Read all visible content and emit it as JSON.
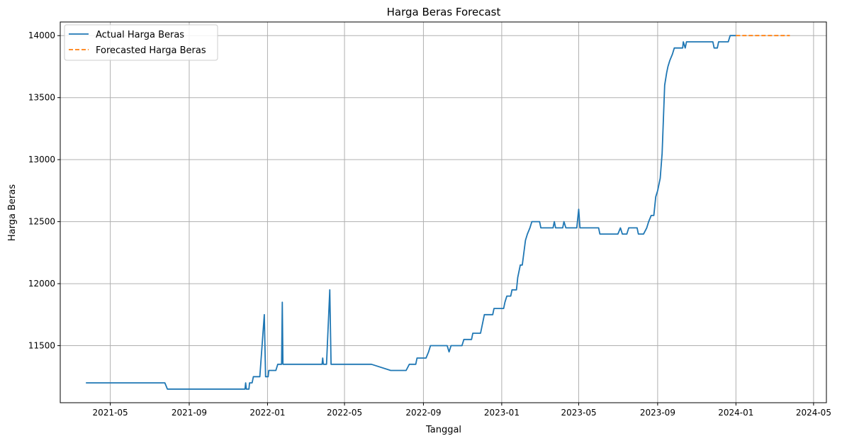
{
  "chart_data": {
    "type": "line",
    "title": "Harga Beras Forecast",
    "xlabel": "Tanggal",
    "ylabel": "Harga Beras",
    "x_axis": {
      "kind": "date",
      "range": [
        "2021-02-12",
        "2024-05-21"
      ],
      "ticks": [
        "2021-05-01",
        "2021-09-01",
        "2022-01-01",
        "2022-05-01",
        "2022-09-01",
        "2023-01-01",
        "2023-05-01",
        "2023-09-01",
        "2024-01-01",
        "2024-05-01"
      ],
      "tick_labels": [
        "2021-05",
        "2021-09",
        "2022-01",
        "2022-05",
        "2022-09",
        "2023-01",
        "2023-05",
        "2023-09",
        "2024-01",
        "2024-05"
      ]
    },
    "y_axis": {
      "range": [
        11040,
        14110
      ],
      "ticks": [
        11500,
        12000,
        12500,
        13000,
        13500,
        14000
      ],
      "tick_labels": [
        "11500",
        "12000",
        "12500",
        "13000",
        "13500",
        "14000"
      ]
    },
    "grid": true,
    "legend_position": "top-left",
    "series": [
      {
        "name": "Actual Harga Beras",
        "color": "#1f77b4",
        "style": "solid",
        "points": [
          [
            "2021-03-24",
            11200
          ],
          [
            "2021-07-25",
            11200
          ],
          [
            "2021-07-29",
            11150
          ],
          [
            "2021-11-27",
            11150
          ],
          [
            "2021-11-28",
            11200
          ],
          [
            "2021-11-29",
            11150
          ],
          [
            "2021-12-03",
            11150
          ],
          [
            "2021-12-04",
            11200
          ],
          [
            "2021-12-08",
            11200
          ],
          [
            "2021-12-10",
            11250
          ],
          [
            "2021-12-20",
            11250
          ],
          [
            "2021-12-27",
            11750
          ],
          [
            "2021-12-29",
            11250
          ],
          [
            "2022-01-02",
            11250
          ],
          [
            "2022-01-03",
            11300
          ],
          [
            "2022-01-14",
            11300
          ],
          [
            "2022-01-17",
            11350
          ],
          [
            "2022-01-23",
            11350
          ],
          [
            "2022-01-24",
            11850
          ],
          [
            "2022-01-25",
            11350
          ],
          [
            "2022-03-27",
            11350
          ],
          [
            "2022-03-28",
            11400
          ],
          [
            "2022-03-29",
            11350
          ],
          [
            "2022-04-03",
            11350
          ],
          [
            "2022-04-08",
            11950
          ],
          [
            "2022-04-10",
            11350
          ],
          [
            "2022-06-12",
            11350
          ],
          [
            "2022-07-12",
            11300
          ],
          [
            "2022-08-05",
            11300
          ],
          [
            "2022-08-10",
            11350
          ],
          [
            "2022-08-20",
            11350
          ],
          [
            "2022-08-22",
            11400
          ],
          [
            "2022-09-05",
            11400
          ],
          [
            "2022-09-09",
            11450
          ],
          [
            "2022-09-12",
            11500
          ],
          [
            "2022-10-08",
            11500
          ],
          [
            "2022-10-11",
            11450
          ],
          [
            "2022-10-14",
            11500
          ],
          [
            "2022-10-31",
            11500
          ],
          [
            "2022-11-03",
            11550
          ],
          [
            "2022-11-15",
            11550
          ],
          [
            "2022-11-17",
            11600
          ],
          [
            "2022-11-29",
            11600
          ],
          [
            "2022-12-03",
            11700
          ],
          [
            "2022-12-05",
            11750
          ],
          [
            "2022-12-18",
            11750
          ],
          [
            "2022-12-20",
            11800
          ],
          [
            "2023-01-04",
            11800
          ],
          [
            "2023-01-06",
            11850
          ],
          [
            "2023-01-09",
            11900
          ],
          [
            "2023-01-15",
            11900
          ],
          [
            "2023-01-17",
            11950
          ],
          [
            "2023-01-24",
            11950
          ],
          [
            "2023-01-26",
            12050
          ],
          [
            "2023-01-30",
            12150
          ],
          [
            "2023-02-02",
            12150
          ],
          [
            "2023-02-07",
            12350
          ],
          [
            "2023-02-10",
            12400
          ],
          [
            "2023-02-14",
            12450
          ],
          [
            "2023-02-17",
            12500
          ],
          [
            "2023-03-01",
            12500
          ],
          [
            "2023-03-03",
            12450
          ],
          [
            "2023-03-22",
            12450
          ],
          [
            "2023-03-24",
            12500
          ],
          [
            "2023-03-26",
            12450
          ],
          [
            "2023-04-06",
            12450
          ],
          [
            "2023-04-08",
            12500
          ],
          [
            "2023-04-11",
            12450
          ],
          [
            "2023-04-28",
            12450
          ],
          [
            "2023-05-01",
            12600
          ],
          [
            "2023-05-03",
            12450
          ],
          [
            "2023-06-01",
            12450
          ],
          [
            "2023-06-03",
            12400
          ],
          [
            "2023-07-01",
            12400
          ],
          [
            "2023-07-05",
            12450
          ],
          [
            "2023-07-08",
            12400
          ],
          [
            "2023-07-15",
            12400
          ],
          [
            "2023-07-18",
            12450
          ],
          [
            "2023-07-31",
            12450
          ],
          [
            "2023-08-02",
            12400
          ],
          [
            "2023-08-10",
            12400
          ],
          [
            "2023-08-15",
            12450
          ],
          [
            "2023-08-18",
            12500
          ],
          [
            "2023-08-22",
            12550
          ],
          [
            "2023-08-26",
            12550
          ],
          [
            "2023-08-29",
            12700
          ],
          [
            "2023-09-01",
            12750
          ],
          [
            "2023-09-05",
            12850
          ],
          [
            "2023-09-08",
            13050
          ],
          [
            "2023-09-12",
            13600
          ],
          [
            "2023-09-15",
            13700
          ],
          [
            "2023-09-17",
            13750
          ],
          [
            "2023-09-20",
            13800
          ],
          [
            "2023-09-24",
            13850
          ],
          [
            "2023-09-27",
            13900
          ],
          [
            "2023-10-10",
            13900
          ],
          [
            "2023-10-11",
            13950
          ],
          [
            "2023-10-14",
            13900
          ],
          [
            "2023-10-16",
            13950
          ],
          [
            "2023-11-26",
            13950
          ],
          [
            "2023-11-28",
            13900
          ],
          [
            "2023-12-03",
            13900
          ],
          [
            "2023-12-05",
            13950
          ],
          [
            "2023-12-20",
            13950
          ],
          [
            "2023-12-23",
            14000
          ],
          [
            "2024-01-01",
            14000
          ]
        ]
      },
      {
        "name": "Forecasted Harga Beras",
        "color": "#ff7f0e",
        "style": "dashed",
        "points": [
          [
            "2024-01-01",
            14000
          ],
          [
            "2024-03-25",
            14000
          ]
        ]
      }
    ]
  }
}
